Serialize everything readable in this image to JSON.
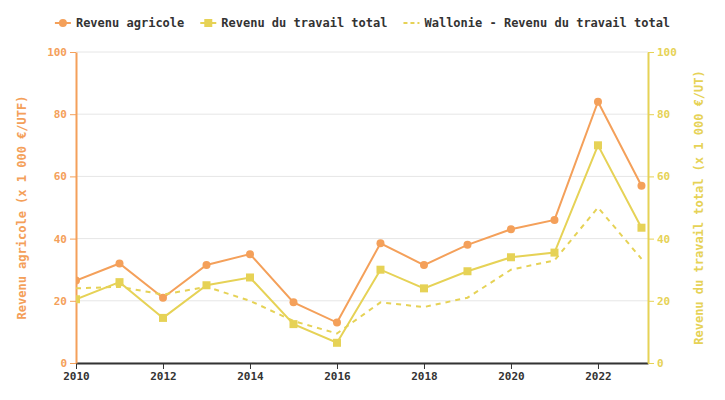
{
  "chart_data": {
    "type": "line",
    "x": [
      2010,
      2011,
      2012,
      2013,
      2014,
      2015,
      2016,
      2017,
      2018,
      2019,
      2020,
      2021,
      2022,
      2023
    ],
    "xlim": [
      2010,
      2023.15
    ],
    "xticks": [
      2010,
      2012,
      2014,
      2016,
      2018,
      2020,
      2022
    ],
    "ylim": [
      0,
      100
    ],
    "yticks": [
      0,
      20,
      40,
      60,
      80,
      100
    ],
    "y2lim": [
      0,
      100
    ],
    "y2ticks": [
      0,
      20,
      40,
      60,
      80,
      100
    ],
    "y_label": "Revenu agricole (x 1 000 €/UTF)",
    "y2_label": "Revenu du travail total (x 1 000 €/UT)",
    "grid": true,
    "legend": "top",
    "series": [
      {
        "name": "Revenu agricole",
        "color": "#f4a05a",
        "marker": "circle",
        "line_style": "solid",
        "axis": "y",
        "values": [
          26.5,
          32,
          21,
          31.5,
          35,
          19.5,
          13,
          38.5,
          31.5,
          38,
          43,
          46,
          84,
          57
        ]
      },
      {
        "name": "Revenu du travail total",
        "color": "#e6d256",
        "marker": "square",
        "line_style": "solid",
        "axis": "y2",
        "values": [
          20.5,
          26,
          14.5,
          25,
          27.5,
          12.5,
          6.5,
          30,
          24,
          29.5,
          34,
          35.5,
          70,
          43.5
        ]
      },
      {
        "name": "Wallonie - Revenu du travail total",
        "color": "#e6d256",
        "marker": "none",
        "line_style": "dashed",
        "axis": "y2",
        "values": [
          24,
          24.5,
          22,
          24.5,
          20,
          13.5,
          9.5,
          19.5,
          18,
          21,
          30,
          33,
          50,
          33.5
        ]
      }
    ]
  }
}
